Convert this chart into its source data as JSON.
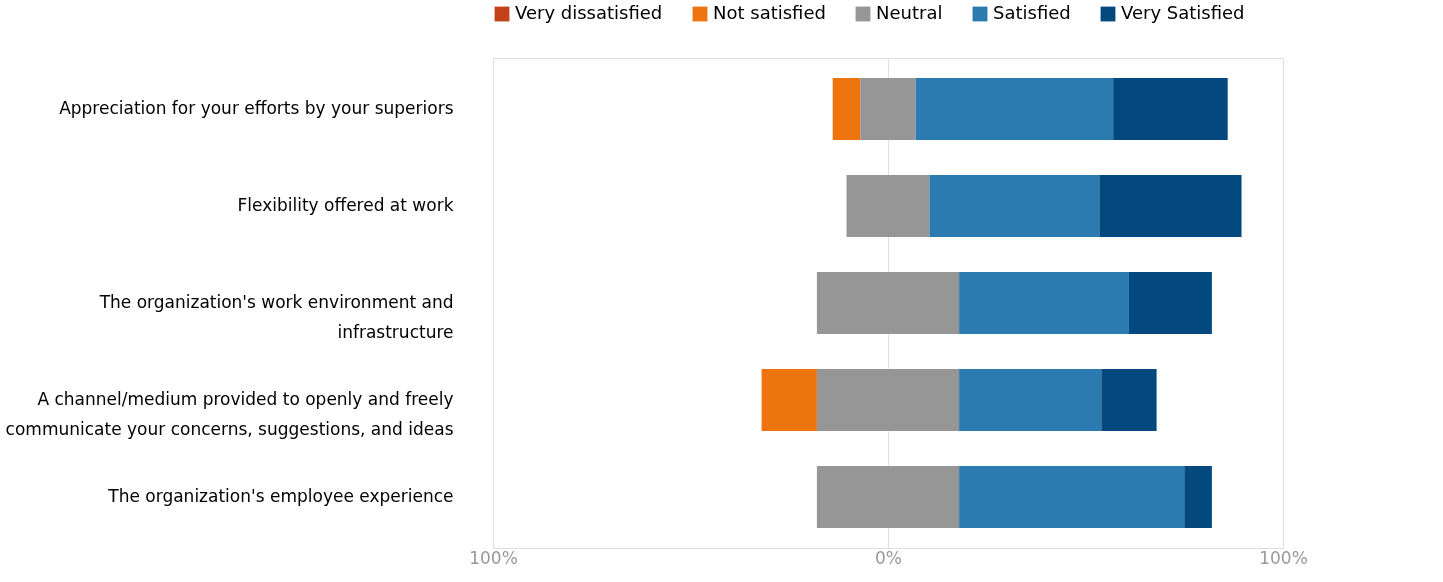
{
  "chart_data": {
    "type": "bar",
    "orientation": "horizontal",
    "categories": [
      "Appreciation for your efforts by your superiors",
      "Flexibility offered at work",
      "The organization's work environment and infrastructure",
      "A channel/medium provided to openly and freely communicate your concerns, suggestions, and ideas",
      "The organization's employee experience"
    ],
    "series": [
      {
        "name": "Very dissatisfied",
        "color": "#c4421a",
        "values": [
          null,
          null,
          null,
          null,
          null
        ]
      },
      {
        "name": "Not satisfied",
        "color": "#ee7410",
        "values": [
          7,
          null,
          null,
          14,
          null
        ],
        "base": [
          -14,
          null,
          null,
          -32,
          null
        ]
      },
      {
        "name": "Neutral",
        "color": "#969696",
        "values": [
          14,
          21,
          36,
          36,
          36
        ],
        "base": [
          -7,
          -10.5,
          -18,
          -18,
          -18
        ]
      },
      {
        "name": "Satisfied",
        "color": "#2b7bb1",
        "values": [
          50,
          43,
          43,
          36,
          57
        ],
        "base": [
          7,
          10.5,
          18,
          18,
          18
        ]
      },
      {
        "name": "Very Satisfied",
        "color": "#03497e",
        "values": [
          29,
          36,
          21,
          14,
          7
        ],
        "base": [
          57,
          53.5,
          61,
          54,
          75
        ]
      }
    ],
    "xlim": [
      -100,
      100
    ],
    "xticks": [
      {
        "value": -100,
        "label": "100%"
      },
      {
        "value": 0,
        "label": "0%"
      },
      {
        "value": 100,
        "label": "100%"
      }
    ],
    "grid": "x",
    "legend": "top"
  }
}
